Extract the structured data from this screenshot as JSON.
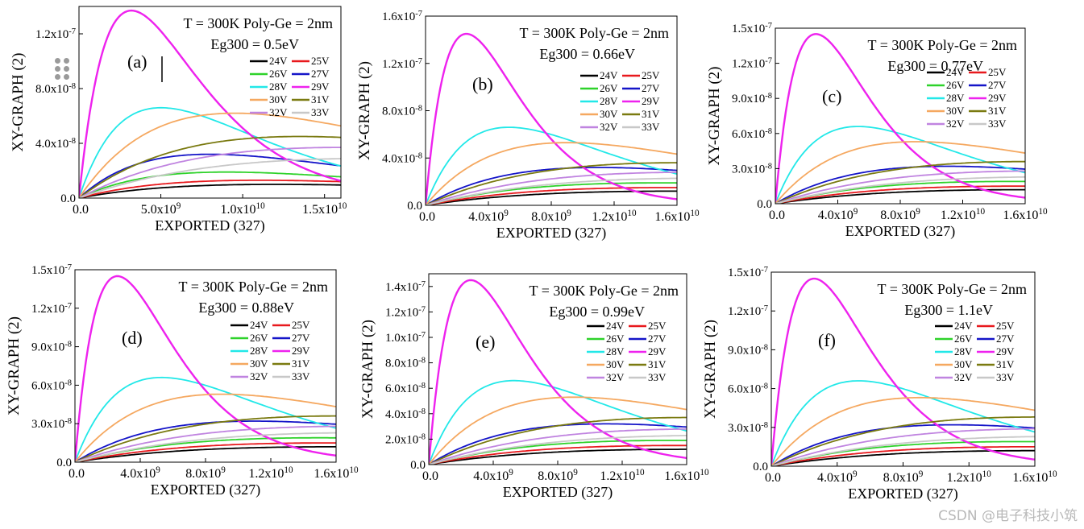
{
  "figure": {
    "watermark": "CSDN @电子科技小筑"
  },
  "colors": {
    "24V": "#000000",
    "25V": "#e8191d",
    "26V": "#2ed22a",
    "27V": "#1414c8",
    "28V": "#22e8e8",
    "29V": "#ee22ee",
    "30V": "#f5a860",
    "31V": "#7a7a10",
    "32V": "#c084e0",
    "33V": "#c8c8c8"
  },
  "legend_order": [
    "24V",
    "25V",
    "26V",
    "27V",
    "28V",
    "29V",
    "30V",
    "31V",
    "32V",
    "33V"
  ],
  "chart_data": [
    {
      "type": "line",
      "panel_label": "(a)",
      "title_line1": "T = 300K    Poly-Ge = 2nm",
      "title_line2": "Eg300 = 0.5eV",
      "xlabel": "EXPORTED (327)",
      "ylabel": "XY-GRAPH (2)",
      "xlim": [
        0,
        16000000000.0
      ],
      "ylim": [
        0,
        1.4e-07
      ],
      "xticks": [
        {
          "v": 0,
          "m": "0.0",
          "e": ""
        },
        {
          "v": 5000000000.0,
          "m": "5.0x10",
          "e": "9"
        },
        {
          "v": 10000000000.0,
          "m": "1.0x10",
          "e": "10"
        },
        {
          "v": 15000000000.0,
          "m": "1.5x10",
          "e": "10"
        }
      ],
      "yticks": [
        {
          "v": 0,
          "m": "0.0",
          "e": ""
        },
        {
          "v": 4e-08,
          "m": "4.0x10",
          "e": "-8"
        },
        {
          "v": 8e-08,
          "m": "8.0x10",
          "e": "-8"
        },
        {
          "v": 1.2e-07,
          "m": "1.2x10",
          "e": "-7"
        }
      ],
      "series": [
        {
          "name": "24V",
          "peak": 1e-08,
          "xp": 12000000000.0
        },
        {
          "name": "25V",
          "peak": 1.3e-08,
          "xp": 11000000000.0
        },
        {
          "name": "26V",
          "peak": 1.9e-08,
          "xp": 9000000000.0
        },
        {
          "name": "27V",
          "peak": 3.2e-08,
          "xp": 8000000000.0
        },
        {
          "name": "28V",
          "peak": 6.6e-08,
          "xp": 5000000000.0
        },
        {
          "name": "29V",
          "peak": 1.37e-07,
          "xp": 3200000000.0
        },
        {
          "name": "30V",
          "peak": 6.2e-08,
          "xp": 9500000000.0
        },
        {
          "name": "31V",
          "peak": 4.5e-08,
          "xp": 13500000000.0
        },
        {
          "name": "32V",
          "peak": 3.7e-08,
          "xp": 16000000000.0
        },
        {
          "name": "33V",
          "peak": 2.9e-08,
          "xp": 18000000000.0
        }
      ]
    },
    {
      "type": "line",
      "panel_label": "(b)",
      "title_line1": "T = 300K    Poly-Ge = 2nm",
      "title_line2": "Eg300 = 0.66eV",
      "xlabel": "EXPORTED (327)",
      "ylabel": "XY-GRAPH (2)",
      "xlim": [
        0,
        16000000000.0
      ],
      "ylim": [
        0,
        1.6e-07
      ],
      "xticks": [
        {
          "v": 0,
          "m": "0.0",
          "e": ""
        },
        {
          "v": 4000000000.0,
          "m": "4.0x10",
          "e": "9"
        },
        {
          "v": 8000000000.0,
          "m": "8.0x10",
          "e": "9"
        },
        {
          "v": 12000000000.0,
          "m": "1.2x10",
          "e": "10"
        },
        {
          "v": 16000000000.0,
          "m": "1.6x10",
          "e": "10"
        }
      ],
      "yticks": [
        {
          "v": 0,
          "m": "0.0",
          "e": ""
        },
        {
          "v": 4e-08,
          "m": "4.0x10",
          "e": "-8"
        },
        {
          "v": 8e-08,
          "m": "8.0x10",
          "e": "-8"
        },
        {
          "v": 1.2e-07,
          "m": "1.2x10",
          "e": "-7"
        },
        {
          "v": 1.6e-07,
          "m": "1.6x10",
          "e": "-7"
        }
      ],
      "series": [
        {
          "name": "24V",
          "peak": 1.2e-08,
          "xp": 16000000000.0
        },
        {
          "name": "25V",
          "peak": 1.5e-08,
          "xp": 15500000000.0
        },
        {
          "name": "26V",
          "peak": 1.9e-08,
          "xp": 15000000000.0
        },
        {
          "name": "27V",
          "peak": 3.2e-08,
          "xp": 11000000000.0
        },
        {
          "name": "28V",
          "peak": 6.6e-08,
          "xp": 5300000000.0
        },
        {
          "name": "29V",
          "peak": 1.45e-07,
          "xp": 2600000000.0
        },
        {
          "name": "30V",
          "peak": 5.3e-08,
          "xp": 9000000000.0
        },
        {
          "name": "31V",
          "peak": 3.6e-08,
          "xp": 16000000000.0
        },
        {
          "name": "32V",
          "peak": 2.8e-08,
          "xp": 17000000000.0
        },
        {
          "name": "33V",
          "peak": 2.3e-08,
          "xp": 18000000000.0
        }
      ]
    },
    {
      "type": "line",
      "panel_label": "(c)",
      "title_line1": "T = 300K  Poly-Ge = 2nm",
      "title_line2": "Eg300 = 0.77eV",
      "xlabel": "EXPORTED (327)",
      "ylabel": "XY-GRAPH (2)",
      "xlim": [
        0,
        16000000000.0
      ],
      "ylim": [
        0,
        1.5e-07
      ],
      "xticks": [
        {
          "v": 0,
          "m": "0.0",
          "e": ""
        },
        {
          "v": 4000000000.0,
          "m": "4.0x10",
          "e": "9"
        },
        {
          "v": 8000000000.0,
          "m": "8.0x10",
          "e": "9"
        },
        {
          "v": 12000000000.0,
          "m": "1.2x10",
          "e": "10"
        },
        {
          "v": 16000000000.0,
          "m": "1.6x10",
          "e": "10"
        }
      ],
      "yticks": [
        {
          "v": 0,
          "m": "0.0",
          "e": ""
        },
        {
          "v": 3e-08,
          "m": "3.0x10",
          "e": "-8"
        },
        {
          "v": 6e-08,
          "m": "6.0x10",
          "e": "-8"
        },
        {
          "v": 9e-08,
          "m": "9.0x10",
          "e": "-8"
        },
        {
          "v": 1.2e-07,
          "m": "1.2x10",
          "e": "-7"
        },
        {
          "v": 1.5e-07,
          "m": "1.5x10",
          "e": "-7"
        }
      ],
      "series": [
        {
          "name": "24V",
          "peak": 1.2e-08,
          "xp": 16000000000.0
        },
        {
          "name": "25V",
          "peak": 1.5e-08,
          "xp": 15500000000.0
        },
        {
          "name": "26V",
          "peak": 1.9e-08,
          "xp": 15000000000.0
        },
        {
          "name": "27V",
          "peak": 3.2e-08,
          "xp": 11000000000.0
        },
        {
          "name": "28V",
          "peak": 6.6e-08,
          "xp": 5300000000.0
        },
        {
          "name": "29V",
          "peak": 1.45e-07,
          "xp": 2600000000.0
        },
        {
          "name": "30V",
          "peak": 5.3e-08,
          "xp": 9000000000.0
        },
        {
          "name": "31V",
          "peak": 3.6e-08,
          "xp": 16000000000.0
        },
        {
          "name": "32V",
          "peak": 2.8e-08,
          "xp": 17000000000.0
        },
        {
          "name": "33V",
          "peak": 2.3e-08,
          "xp": 18000000000.0
        }
      ]
    },
    {
      "type": "line",
      "panel_label": "(d)",
      "title_line1": "T = 300K  Poly-Ge = 2nm",
      "title_line2": "Eg300 = 0.88eV",
      "xlabel": "EXPORTED (327)",
      "ylabel": "XY-GRAPH (2)",
      "xlim": [
        0,
        16000000000.0
      ],
      "ylim": [
        0,
        1.5e-07
      ],
      "xticks": [
        {
          "v": 0,
          "m": "0.0",
          "e": ""
        },
        {
          "v": 4000000000.0,
          "m": "4.0x10",
          "e": "9"
        },
        {
          "v": 8000000000.0,
          "m": "8.0x10",
          "e": "9"
        },
        {
          "v": 12000000000.0,
          "m": "1.2x10",
          "e": "10"
        },
        {
          "v": 16000000000.0,
          "m": "1.6x10",
          "e": "10"
        }
      ],
      "yticks": [
        {
          "v": 0,
          "m": "0.0",
          "e": ""
        },
        {
          "v": 3e-08,
          "m": "3.0x10",
          "e": "-8"
        },
        {
          "v": 6e-08,
          "m": "6.0x10",
          "e": "-8"
        },
        {
          "v": 9e-08,
          "m": "9.0x10",
          "e": "-8"
        },
        {
          "v": 1.2e-07,
          "m": "1.2x10",
          "e": "-7"
        },
        {
          "v": 1.5e-07,
          "m": "1.5x10",
          "e": "-7"
        }
      ],
      "series": [
        {
          "name": "24V",
          "peak": 1.2e-08,
          "xp": 16000000000.0
        },
        {
          "name": "25V",
          "peak": 1.5e-08,
          "xp": 15500000000.0
        },
        {
          "name": "26V",
          "peak": 1.9e-08,
          "xp": 15000000000.0
        },
        {
          "name": "27V",
          "peak": 3.2e-08,
          "xp": 11000000000.0
        },
        {
          "name": "28V",
          "peak": 6.6e-08,
          "xp": 5300000000.0
        },
        {
          "name": "29V",
          "peak": 1.45e-07,
          "xp": 2600000000.0
        },
        {
          "name": "30V",
          "peak": 5.3e-08,
          "xp": 9000000000.0
        },
        {
          "name": "31V",
          "peak": 3.6e-08,
          "xp": 16000000000.0
        },
        {
          "name": "32V",
          "peak": 2.8e-08,
          "xp": 17000000000.0
        },
        {
          "name": "33V",
          "peak": 2.3e-08,
          "xp": 18000000000.0
        }
      ]
    },
    {
      "type": "line",
      "panel_label": "(e)",
      "title_line1": "T = 300K    Poly-Ge = 2nm",
      "title_line2": "Eg300 = 0.99eV",
      "xlabel": "EXPORTED (327)",
      "ylabel": "XY-GRAPH (2)",
      "xlim": [
        0,
        16000000000.0
      ],
      "ylim": [
        0,
        1.5e-07
      ],
      "xticks": [
        {
          "v": 0,
          "m": "0.0",
          "e": ""
        },
        {
          "v": 4000000000.0,
          "m": "4.0x10",
          "e": "9"
        },
        {
          "v": 8000000000.0,
          "m": "8.0x10",
          "e": "9"
        },
        {
          "v": 12000000000.0,
          "m": "1.2x10",
          "e": "10"
        },
        {
          "v": 16000000000.0,
          "m": "1.6x10",
          "e": "10"
        }
      ],
      "yticks": [
        {
          "v": 0,
          "m": "0.0",
          "e": ""
        },
        {
          "v": 2e-08,
          "m": "2.0x10",
          "e": "-8"
        },
        {
          "v": 4e-08,
          "m": "4.0x10",
          "e": "-8"
        },
        {
          "v": 6e-08,
          "m": "6.0x10",
          "e": "-8"
        },
        {
          "v": 8e-08,
          "m": "8.0x10",
          "e": "-8"
        },
        {
          "v": 1e-07,
          "m": "1.0x10",
          "e": "-7"
        },
        {
          "v": 1.2e-07,
          "m": "1.2x10",
          "e": "-7"
        },
        {
          "v": 1.4e-07,
          "m": "1.4x10",
          "e": "-7"
        }
      ],
      "series": [
        {
          "name": "24V",
          "peak": 1.2e-08,
          "xp": 16000000000.0
        },
        {
          "name": "25V",
          "peak": 1.5e-08,
          "xp": 15500000000.0
        },
        {
          "name": "26V",
          "peak": 1.9e-08,
          "xp": 15000000000.0
        },
        {
          "name": "27V",
          "peak": 3.2e-08,
          "xp": 11000000000.0
        },
        {
          "name": "28V",
          "peak": 6.6e-08,
          "xp": 5300000000.0
        },
        {
          "name": "29V",
          "peak": 1.45e-07,
          "xp": 2600000000.0
        },
        {
          "name": "30V",
          "peak": 5.3e-08,
          "xp": 9000000000.0
        },
        {
          "name": "31V",
          "peak": 3.7e-08,
          "xp": 16000000000.0
        },
        {
          "name": "32V",
          "peak": 2.8e-08,
          "xp": 17000000000.0
        },
        {
          "name": "33V",
          "peak": 2.3e-08,
          "xp": 18000000000.0
        }
      ]
    },
    {
      "type": "line",
      "panel_label": "(f)",
      "title_line1": "T = 300K    Poly-Ge = 2nm",
      "title_line2": "Eg300 = 1.1eV",
      "xlabel": "EXPORTED (327)",
      "ylabel": "XY-GRAPH (2)",
      "xlim": [
        0,
        16000000000.0
      ],
      "ylim": [
        0,
        1.5e-07
      ],
      "xticks": [
        {
          "v": 0,
          "m": "0.0",
          "e": ""
        },
        {
          "v": 4000000000.0,
          "m": "4.0x10",
          "e": "9"
        },
        {
          "v": 8000000000.0,
          "m": "8.0x10",
          "e": "9"
        },
        {
          "v": 12000000000.0,
          "m": "1.2x10",
          "e": "10"
        },
        {
          "v": 16000000000.0,
          "m": "1.6x10",
          "e": "10"
        }
      ],
      "yticks": [
        {
          "v": 0,
          "m": "0.0",
          "e": ""
        },
        {
          "v": 3e-08,
          "m": "3.0x10",
          "e": "-8"
        },
        {
          "v": 6e-08,
          "m": "6.0x10",
          "e": "-8"
        },
        {
          "v": 9e-08,
          "m": "9.0x10",
          "e": "-8"
        },
        {
          "v": 1.2e-07,
          "m": "1.2x10",
          "e": "-7"
        },
        {
          "v": 1.5e-07,
          "m": "1.5x10",
          "e": "-7"
        }
      ],
      "series": [
        {
          "name": "24V",
          "peak": 1.2e-08,
          "xp": 16000000000.0
        },
        {
          "name": "25V",
          "peak": 1.5e-08,
          "xp": 15500000000.0
        },
        {
          "name": "26V",
          "peak": 1.9e-08,
          "xp": 15000000000.0
        },
        {
          "name": "27V",
          "peak": 3.2e-08,
          "xp": 11000000000.0
        },
        {
          "name": "28V",
          "peak": 6.6e-08,
          "xp": 5300000000.0
        },
        {
          "name": "29V",
          "peak": 1.45e-07,
          "xp": 2600000000.0
        },
        {
          "name": "30V",
          "peak": 5.3e-08,
          "xp": 9000000000.0
        },
        {
          "name": "31V",
          "peak": 3.8e-08,
          "xp": 16000000000.0
        },
        {
          "name": "32V",
          "peak": 2.9e-08,
          "xp": 17000000000.0
        },
        {
          "name": "33V",
          "peak": 2.3e-08,
          "xp": 18000000000.0
        }
      ]
    }
  ]
}
